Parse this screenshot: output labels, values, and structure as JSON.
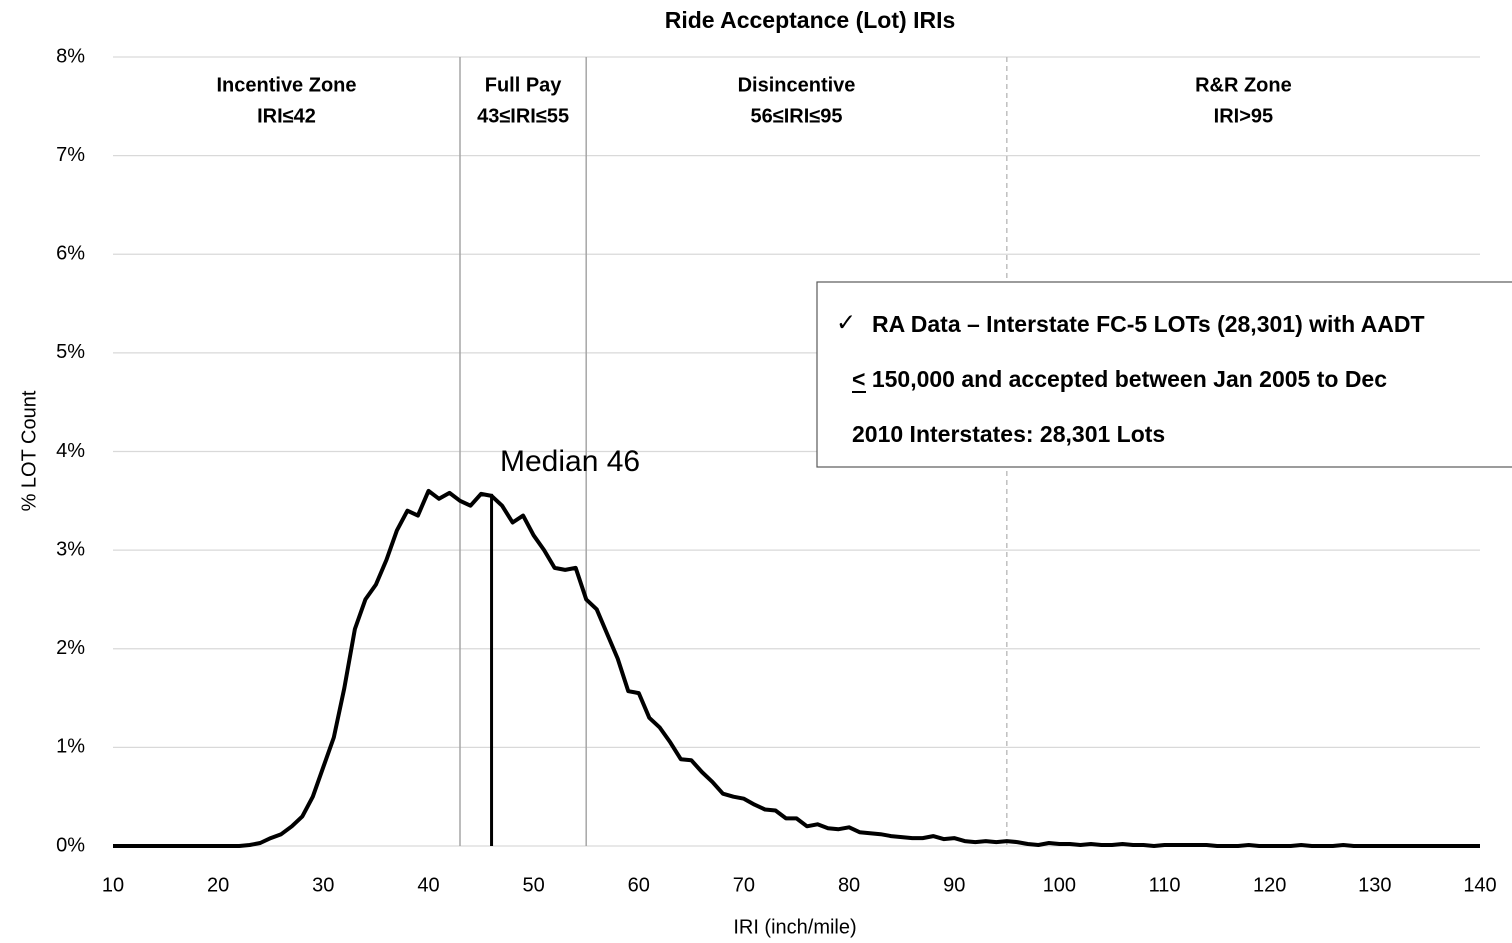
{
  "chart_data": {
    "type": "line",
    "title": "Ride Acceptance (Lot) IRIs",
    "x_label": "IRI (inch/mile)",
    "y_label": "% LOT Count",
    "color": "#000000",
    "x": [
      10,
      11,
      12,
      13,
      14,
      15,
      16,
      17,
      18,
      19,
      20,
      21,
      22,
      23,
      24,
      25,
      26,
      27,
      28,
      29,
      30,
      31,
      32,
      33,
      34,
      35,
      36,
      37,
      38,
      39,
      40,
      41,
      42,
      43,
      44,
      45,
      46,
      47,
      48,
      49,
      50,
      51,
      52,
      53,
      54,
      55,
      56,
      57,
      58,
      59,
      60,
      61,
      62,
      63,
      64,
      65,
      66,
      67,
      68,
      69,
      70,
      71,
      72,
      73,
      74,
      75,
      76,
      77,
      78,
      79,
      80,
      81,
      82,
      83,
      84,
      85,
      86,
      87,
      88,
      89,
      90,
      91,
      92,
      93,
      94,
      95,
      96,
      97,
      98,
      99,
      100,
      101,
      102,
      103,
      104,
      105,
      106,
      107,
      108,
      109,
      110,
      111,
      112,
      113,
      114,
      115,
      116,
      117,
      118,
      119,
      120,
      121,
      122,
      123,
      124,
      125,
      126,
      127,
      128,
      129,
      130,
      131,
      132,
      133,
      134,
      135,
      136,
      137,
      138,
      139,
      140
    ],
    "values": [
      0,
      0,
      0,
      0,
      0,
      0,
      0,
      0,
      0,
      0,
      0,
      0,
      0,
      0.01,
      0.03,
      0.08,
      0.12,
      0.2,
      0.3,
      0.5,
      0.8,
      1.1,
      1.6,
      2.2,
      2.5,
      2.65,
      2.9,
      3.2,
      3.4,
      3.35,
      3.6,
      3.52,
      3.58,
      3.5,
      3.45,
      3.57,
      3.55,
      3.45,
      3.28,
      3.35,
      3.15,
      3.0,
      2.82,
      2.8,
      2.82,
      2.5,
      2.4,
      2.15,
      1.9,
      1.57,
      1.55,
      1.3,
      1.2,
      1.05,
      0.88,
      0.87,
      0.75,
      0.65,
      0.53,
      0.5,
      0.48,
      0.42,
      0.37,
      0.36,
      0.28,
      0.28,
      0.2,
      0.22,
      0.18,
      0.17,
      0.19,
      0.14,
      0.13,
      0.12,
      0.1,
      0.09,
      0.08,
      0.08,
      0.1,
      0.07,
      0.08,
      0.05,
      0.04,
      0.05,
      0.04,
      0.05,
      0.04,
      0.02,
      0.01,
      0.03,
      0.02,
      0.02,
      0.01,
      0.02,
      0.01,
      0.01,
      0.02,
      0.01,
      0.01,
      0,
      0.01,
      0.01,
      0.01,
      0.01,
      0.01,
      0,
      0,
      0,
      0.01,
      0,
      0,
      0,
      0,
      0.01,
      0,
      0,
      0,
      0.01,
      0,
      0,
      0,
      0,
      0,
      0,
      0,
      0,
      0,
      0,
      0,
      0,
      0
    ],
    "xlim": [
      10,
      140
    ],
    "xticks": [
      10,
      20,
      30,
      40,
      50,
      60,
      70,
      80,
      90,
      100,
      110,
      120,
      130,
      140
    ],
    "ylim": [
      0,
      8
    ],
    "yticks": [
      {
        "value": 0,
        "label": "0%"
      },
      {
        "value": 1,
        "label": "1%"
      },
      {
        "value": 2,
        "label": "2%"
      },
      {
        "value": 3,
        "label": "3%"
      },
      {
        "value": 4,
        "label": "4%"
      },
      {
        "value": 5,
        "label": "5%"
      },
      {
        "value": 6,
        "label": "6%"
      },
      {
        "value": 7,
        "label": "7%"
      },
      {
        "value": 8,
        "label": "8%"
      }
    ],
    "grid": true,
    "zone_lines": [
      {
        "x": 43,
        "dashed": false
      },
      {
        "x": 55,
        "dashed": false
      },
      {
        "x": 95,
        "dashed": true
      }
    ],
    "zones": [
      {
        "name": "Incentive Zone",
        "range": "IRI≤42",
        "from": 10,
        "to": 43
      },
      {
        "name": "Full Pay",
        "range": "43≤IRI≤55",
        "from": 43,
        "to": 55
      },
      {
        "name": "Disincentive",
        "range": "56≤IRI≤95",
        "from": 55,
        "to": 95
      },
      {
        "name": "R&R Zone",
        "range": "IRI>95",
        "from": 95,
        "to": 140
      }
    ],
    "median": {
      "label": "Median 46",
      "x": 46,
      "y": 3.57
    },
    "note": {
      "check": "✓",
      "lines": [
        "RA Data – Interstate FC-5 LOTs (28,301) with AADT",
        "< 150,000 and accepted between Jan 2005 to Dec",
        "2010 Interstates: 28,301 Lots"
      ]
    }
  }
}
